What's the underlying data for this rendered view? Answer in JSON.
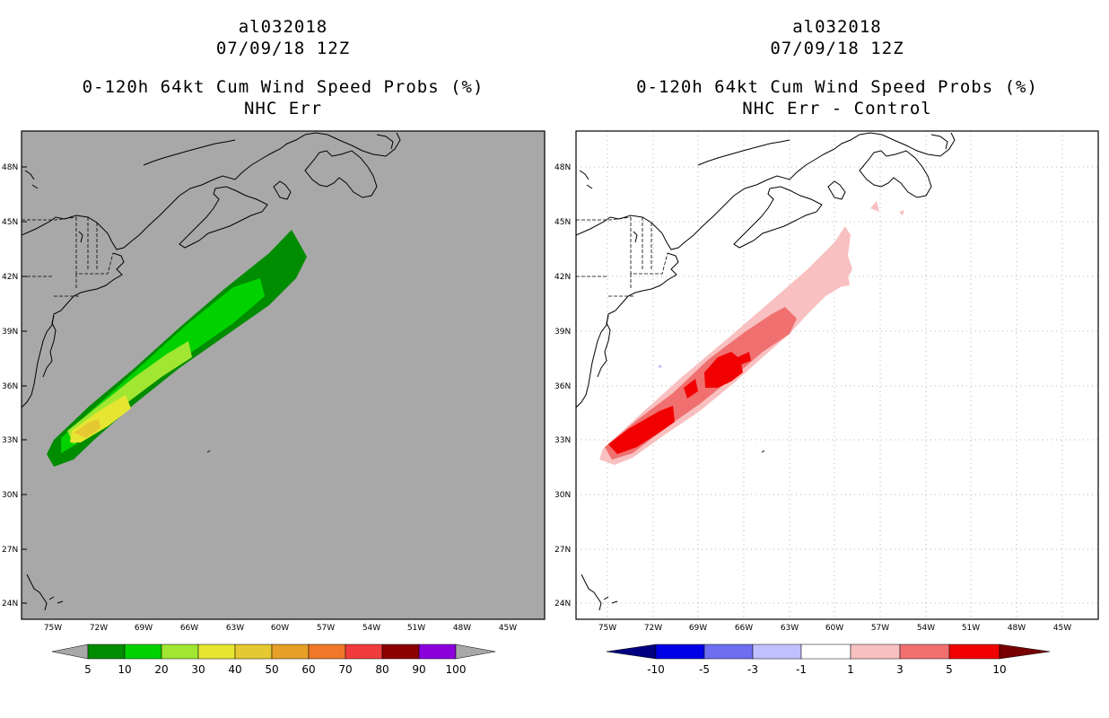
{
  "colors": {
    "land_bg_left": "#a8a8a8",
    "green_dark": "#008c00",
    "green": "#00d200",
    "green_light": "#a0e632",
    "yellow": "#e6e632",
    "yellow_dark": "#e6c832",
    "red_light": "#f8c0c0",
    "red_mid": "#f07070",
    "red": "#f00000",
    "blue_faint": "#c0c0ff"
  },
  "left_panel": {
    "storm_id": "al032018",
    "date": "07/09/18 12Z",
    "title": "0-120h 64kt Cum Wind Speed Probs (%)",
    "subtitle": "NHC Err",
    "lat_labels": [
      "48N",
      "45N",
      "42N",
      "39N",
      "36N",
      "33N",
      "30N",
      "27N",
      "24N"
    ],
    "lon_labels": [
      "75W",
      "72W",
      "69W",
      "66W",
      "63W",
      "60W",
      "57W",
      "54W",
      "51W",
      "48W",
      "45W"
    ],
    "colorbar": {
      "labels": [
        "5",
        "10",
        "20",
        "30",
        "40",
        "50",
        "60",
        "70",
        "80",
        "90",
        "100"
      ],
      "colors": [
        "#a8a8a8",
        "#008c00",
        "#00d200",
        "#a0e632",
        "#e6e632",
        "#e6c832",
        "#e6a028",
        "#f07828",
        "#f03c3c",
        "#8c0000",
        "#8c00dc",
        "#a8a8a8"
      ]
    }
  },
  "right_panel": {
    "storm_id": "al032018",
    "date": "07/09/18 12Z",
    "title": "0-120h 64kt Cum Wind Speed Probs (%)",
    "subtitle": "NHC Err - Control",
    "lat_labels": [
      "48N",
      "45N",
      "42N",
      "39N",
      "36N",
      "33N",
      "30N",
      "27N",
      "24N"
    ],
    "lon_labels": [
      "75W",
      "72W",
      "69W",
      "66W",
      "63W",
      "60W",
      "57W",
      "54W",
      "51W",
      "48W",
      "45W"
    ],
    "colorbar": {
      "labels": [
        "-10",
        "-5",
        "-3",
        "-1",
        "1",
        "3",
        "5",
        "10"
      ],
      "colors": [
        "#000080",
        "#0000e6",
        "#6e6ef0",
        "#c0c0ff",
        "#ffffff",
        "#f8c0c0",
        "#f07070",
        "#f00000",
        "#780000"
      ]
    }
  }
}
